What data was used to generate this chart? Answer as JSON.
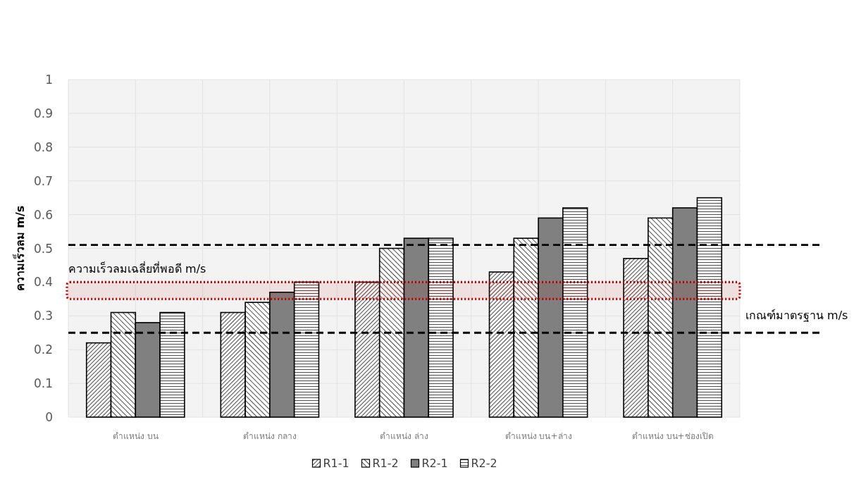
{
  "chart_data": {
    "type": "bar",
    "ylabel": "ความเร็วลม m/s",
    "categories": [
      "ตำแหน่ง บน",
      "ตำแหน่ง กลาง",
      "ตำแหน่ง ล่าง",
      "ตำแหน่ง บน+ล่าง",
      "ตำแหน่ง บน+ช่องเปิด"
    ],
    "series": [
      {
        "name": "R1-1",
        "color": "#000000",
        "values": [
          0.22,
          0.31,
          0.4,
          0.43,
          0.47
        ]
      },
      {
        "name": "R1-2",
        "color": "#000000",
        "values": [
          0.31,
          0.34,
          0.5,
          0.53,
          0.59
        ]
      },
      {
        "name": "R2-1",
        "color": "#808080",
        "values": [
          0.28,
          0.37,
          0.53,
          0.59,
          0.62
        ]
      },
      {
        "name": "R2-2",
        "color": "#000000",
        "values": [
          0.31,
          0.4,
          0.53,
          0.62,
          0.65
        ]
      }
    ],
    "ylim": [
      0,
      1
    ],
    "yticks": [
      0,
      0.1,
      0.2,
      0.3,
      0.4,
      0.5,
      0.6,
      0.7,
      0.8,
      0.9,
      1
    ],
    "grid": true,
    "legend": "bottom",
    "ref_lines": [
      {
        "axis": "y",
        "value": 0.51,
        "color": "#000000",
        "line_style": "dashed"
      },
      {
        "axis": "y",
        "value": 0.25,
        "color": "#000000",
        "line_style": "dashed",
        "label": "เกณฑ์มาตรฐาน m/s"
      }
    ],
    "bands": [
      {
        "axis": "y",
        "from": 0.35,
        "to": 0.4,
        "color": "#c00000",
        "label": "ความเร็วลมเฉลี่ยที่พอดี m/s"
      }
    ]
  }
}
